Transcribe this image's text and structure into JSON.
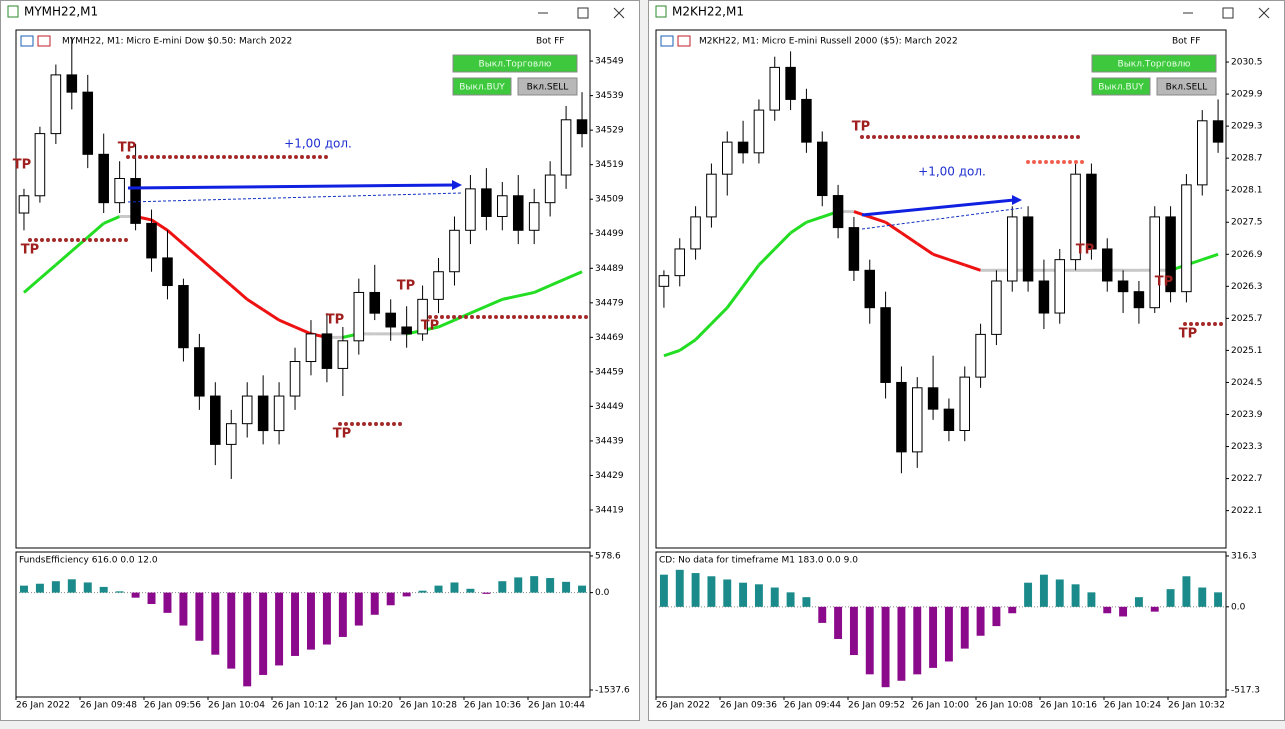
{
  "windows": [
    {
      "title": "MYMH22,M1",
      "chart_data": {
        "type": "candlestick",
        "title": "MYMH22, M1:  Micro E-mini Dow $0.50: March 2022",
        "bot": "Bot FF",
        "buttons": [
          "Выкл.Торговлю",
          "Выкл.BUY",
          "Вкл.SELL"
        ],
        "annotation": "+1,00 дол.",
        "tp_labels": [
          "TP",
          "TP",
          "TP",
          "TP",
          "TP",
          "TP",
          "TP"
        ],
        "up_color": "#ffffff",
        "down_color": "#000000",
        "open": [
          34505,
          34510,
          34528,
          34545,
          34540,
          34522,
          34508,
          34515,
          34502,
          34492,
          34484,
          34466,
          34452,
          34438,
          34444,
          34452,
          34442,
          34452,
          34462,
          34470,
          34460,
          34468,
          34482,
          34476,
          34472,
          34470,
          34480,
          34488,
          34500,
          34512,
          34504,
          34510,
          34500,
          34508,
          34516,
          34532
        ],
        "high": [
          34512,
          34530,
          34548,
          34556,
          34545,
          34528,
          34520,
          34525,
          34506,
          34500,
          34486,
          34470,
          34456,
          34448,
          34456,
          34458,
          34456,
          34466,
          34474,
          34476,
          34472,
          34486,
          34490,
          34480,
          34478,
          34484,
          34492,
          34504,
          34516,
          34518,
          34514,
          34516,
          34512,
          34520,
          34536,
          34540
        ],
        "low": [
          34500,
          34508,
          34525,
          34535,
          34518,
          34505,
          34505,
          34500,
          34488,
          34480,
          34462,
          34448,
          34432,
          34428,
          34440,
          34438,
          34438,
          34448,
          34458,
          34456,
          34452,
          34464,
          34474,
          34468,
          34466,
          34468,
          34476,
          34484,
          34496,
          34500,
          34500,
          34496,
          34496,
          34504,
          34512,
          34524
        ],
        "close": [
          34510,
          34528,
          34545,
          34540,
          34522,
          34508,
          34515,
          34502,
          34492,
          34484,
          34466,
          34452,
          34438,
          34444,
          34452,
          34442,
          34452,
          34462,
          34470,
          34460,
          34468,
          34482,
          34476,
          34472,
          34470,
          34480,
          34488,
          34500,
          34512,
          34504,
          34510,
          34500,
          34508,
          34516,
          34532,
          34528
        ],
        "ma": {
          "up_color": "#22dd22",
          "down_color": "#ee1111",
          "flat_color": "#c8c8c8",
          "values": [
            34482,
            34486,
            34490,
            34494,
            34498,
            34502,
            34504,
            34504,
            34503,
            34500,
            34496,
            34492,
            34488,
            34484,
            34480,
            34477,
            34474,
            34472,
            34470,
            34469,
            34469,
            34470,
            34470,
            34470,
            34470,
            34471,
            34472,
            34474,
            34476,
            34478,
            34480,
            34481,
            34482,
            34484,
            34486,
            34488
          ]
        },
        "ylim": [
          34408,
          34558
        ],
        "yticks": [
          34549,
          34539,
          34529,
          34519,
          34509,
          34499,
          34489,
          34479,
          34469,
          34459,
          34449,
          34439,
          34429,
          34419
        ],
        "x_labels": [
          "26 Jan 2022",
          "26 Jan 09:48",
          "26 Jan 09:56",
          "26 Jan 10:04",
          "26 Jan 10:12",
          "26 Jan 10:20",
          "26 Jan 10:28",
          "26 Jan 10:36",
          "26 Jan 10:44"
        ],
        "indicator": {
          "type": "bar",
          "title": "FundsEfficiency 616.0 0.0 12.0",
          "pos_color": "#1a8a8a",
          "neg_color": "#8b0a8b",
          "ylim": [
            -1648,
            641
          ],
          "yticks": [
            578.6,
            {
              "value": 0,
              "label": "0.0"
            },
            -1537.6
          ],
          "values": [
            110,
            140,
            180,
            210,
            160,
            90,
            20,
            -80,
            -180,
            -320,
            -520,
            -760,
            -980,
            -1200,
            -1480,
            -1300,
            -1150,
            -1000,
            -900,
            -820,
            -700,
            -520,
            -350,
            -200,
            -60,
            30,
            110,
            160,
            60,
            -20,
            180,
            240,
            260,
            230,
            170,
            110
          ]
        }
      }
    },
    {
      "title": "M2KH22,M1",
      "chart_data": {
        "type": "candlestick",
        "title": "M2KH22, M1:  Micro E-mini Russell 2000 ($5): March 2022",
        "bot": "Bot FF",
        "buttons": [
          "Выкл.Торговлю",
          "Выкл.BUY",
          "Вкл.SELL"
        ],
        "annotation": "+1,00 дол.",
        "tp_labels": [
          "TP",
          "TP",
          "TP",
          "TP"
        ],
        "up_color": "#ffffff",
        "down_color": "#000000",
        "open": [
          2026.3,
          2026.5,
          2027.0,
          2027.6,
          2028.4,
          2029.0,
          2028.8,
          2029.6,
          2030.4,
          2029.8,
          2029.0,
          2028.0,
          2027.4,
          2026.6,
          2025.9,
          2024.5,
          2023.2,
          2024.4,
          2024.0,
          2023.6,
          2024.6,
          2025.4,
          2026.4,
          2027.6,
          2026.4,
          2025.8,
          2026.8,
          2028.4,
          2027.0,
          2026.4,
          2026.2,
          2025.9,
          2027.6,
          2026.2,
          2028.2,
          2029.4
        ],
        "high": [
          2026.6,
          2027.2,
          2027.8,
          2028.6,
          2029.2,
          2029.4,
          2029.8,
          2030.6,
          2030.7,
          2030.0,
          2029.2,
          2028.2,
          2027.6,
          2026.8,
          2026.2,
          2024.8,
          2024.6,
          2025.0,
          2024.2,
          2024.8,
          2025.6,
          2026.6,
          2027.8,
          2027.8,
          2026.8,
          2027.0,
          2028.6,
          2028.6,
          2027.2,
          2026.6,
          2026.4,
          2027.8,
          2027.8,
          2028.4,
          2029.6,
          2029.8
        ],
        "low": [
          2025.9,
          2026.3,
          2026.8,
          2027.4,
          2028.0,
          2028.6,
          2028.6,
          2029.4,
          2029.6,
          2028.8,
          2027.8,
          2027.2,
          2026.4,
          2025.6,
          2024.2,
          2022.8,
          2022.9,
          2023.8,
          2023.4,
          2023.4,
          2024.4,
          2025.2,
          2026.2,
          2026.2,
          2025.5,
          2025.6,
          2026.6,
          2026.8,
          2026.2,
          2025.8,
          2025.6,
          2025.8,
          2026.0,
          2026.0,
          2028.0,
          2028.8
        ],
        "close": [
          2026.5,
          2027.0,
          2027.6,
          2028.4,
          2029.0,
          2028.8,
          2029.6,
          2030.4,
          2029.8,
          2029.0,
          2028.0,
          2027.4,
          2026.6,
          2025.9,
          2024.5,
          2023.2,
          2024.4,
          2024.0,
          2023.6,
          2024.6,
          2025.4,
          2026.4,
          2027.6,
          2026.4,
          2025.8,
          2026.8,
          2028.4,
          2027.0,
          2026.4,
          2026.2,
          2025.9,
          2027.6,
          2026.2,
          2028.2,
          2029.4,
          2029.0
        ],
        "ma": {
          "up_color": "#22dd22",
          "down_color": "#ee1111",
          "flat_color": "#c8c8c8",
          "values": [
            2025.0,
            2025.1,
            2025.3,
            2025.6,
            2025.9,
            2026.3,
            2026.7,
            2027.0,
            2027.3,
            2027.5,
            2027.6,
            2027.7,
            2027.7,
            2027.6,
            2027.5,
            2027.3,
            2027.1,
            2026.9,
            2026.8,
            2026.7,
            2026.6,
            2026.6,
            2026.6,
            2026.6,
            2026.6,
            2026.6,
            2026.6,
            2026.6,
            2026.6,
            2026.6,
            2026.6,
            2026.6,
            2026.6,
            2026.7,
            2026.8,
            2026.9
          ]
        },
        "ylim": [
          2021.4,
          2031.1
        ],
        "yticks": [
          2030.5,
          2029.9,
          2029.3,
          2028.7,
          2028.1,
          2027.5,
          2026.9,
          2026.3,
          2025.7,
          2025.1,
          2024.5,
          2023.9,
          2023.3,
          2022.7,
          2022.1
        ],
        "x_labels": [
          "26 Jan 2022",
          "26 Jan 09:36",
          "26 Jan 09:44",
          "26 Jan 09:52",
          "26 Jan 10:00",
          "26 Jan 10:08",
          "26 Jan 10:16",
          "26 Jan 10:24",
          "26 Jan 10:32"
        ],
        "indicator": {
          "type": "bar",
          "title": "CD: No data for timeframe M1 183.0 0.0 9.0",
          "pos_color": "#1a8a8a",
          "neg_color": "#8b0a8b",
          "ylim": [
            -561,
            341
          ],
          "yticks": [
            316.3,
            {
              "value": 0,
              "label": "0.0"
            },
            -517.3
          ],
          "values": [
            200,
            230,
            210,
            190,
            170,
            150,
            140,
            120,
            90,
            60,
            -100,
            -200,
            -300,
            -420,
            -500,
            -460,
            -420,
            -380,
            -340,
            -260,
            -180,
            -120,
            -40,
            150,
            200,
            170,
            140,
            90,
            -40,
            -60,
            60,
            -30,
            110,
            190,
            120,
            90
          ]
        }
      }
    }
  ]
}
